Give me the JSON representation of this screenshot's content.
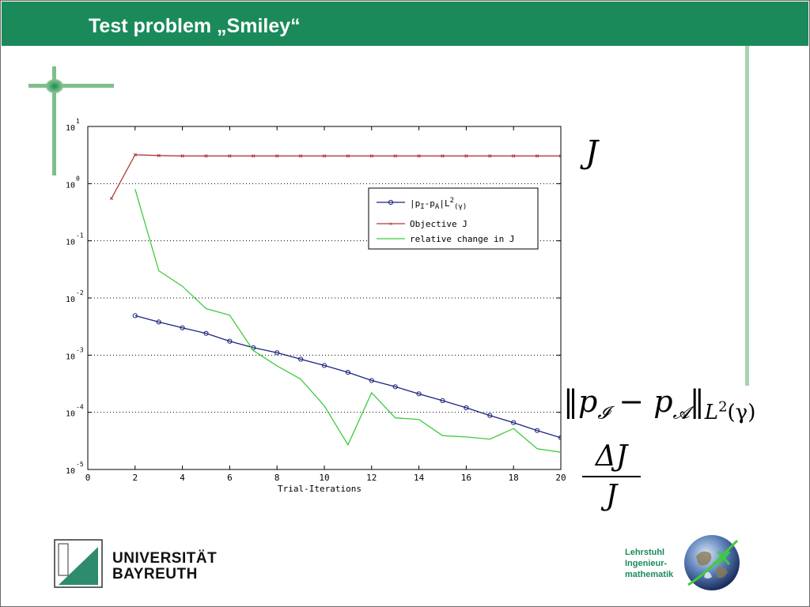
{
  "slide": {
    "title": "Test problem „Smiley“",
    "colors": {
      "brand": "#1b8a5a",
      "accent_light": "#7fbf8a"
    }
  },
  "annotations": {
    "objective": {
      "base": "J"
    },
    "norm": {
      "text": "‖p",
      "sub1": "𝓘",
      "minus": " − p",
      "sub2": "𝓐",
      "close": "‖",
      "space": "L",
      "sup": "2",
      "arg": "(γ)"
    },
    "relative_change": {
      "numerator": "ΔJ",
      "denominator": "J"
    }
  },
  "footer": {
    "university_line1": "UNIVERSITÄT",
    "university_line2": "BAYREUTH",
    "chair_line1": "Lehrstuhl",
    "chair_line2": "Ingenieur-",
    "chair_line3": "mathematik",
    "logo_icon": "university-bayreuth-logo-icon",
    "globe_icon": "globe-icon"
  },
  "chart_data": {
    "type": "line",
    "title": "",
    "xlabel": "Trial-Iterations",
    "ylabel": "",
    "xlim": [
      0,
      20
    ],
    "ylim": [
      1e-05,
      10
    ],
    "yscale": "log",
    "grid": "y-dotted",
    "xticks": [
      "0",
      "2",
      "4",
      "6",
      "8",
      "10",
      "12",
      "14",
      "16",
      "18",
      "20"
    ],
    "yticks": [
      {
        "base": "10",
        "exp": "1"
      },
      {
        "base": "10",
        "exp": "0"
      },
      {
        "base": "10",
        "exp": "-1"
      },
      {
        "base": "10",
        "exp": "-2"
      },
      {
        "base": "10",
        "exp": "-3"
      },
      {
        "base": "10",
        "exp": "-4"
      },
      {
        "base": "10",
        "exp": "-5"
      }
    ],
    "legend_position": "top-right",
    "series": [
      {
        "name": "|pI-pA|L2(γ)",
        "legend": {
          "a": "|p",
          "b": "I",
          "c": "-p",
          "d": "A",
          "e": "|",
          "f": "L",
          "g": "2",
          "h": "(γ)"
        },
        "color": "#1a237e",
        "marker": "circle",
        "x": [
          2,
          3,
          4,
          5,
          6,
          7,
          8,
          9,
          10,
          11,
          12,
          13,
          14,
          15,
          16,
          17,
          18,
          19,
          20
        ],
        "y": [
          0.0049,
          0.0038,
          0.003,
          0.0024,
          0.00175,
          0.00135,
          0.0011,
          0.00085,
          0.00066,
          0.0005,
          0.00036,
          0.00028,
          0.00021,
          0.00016,
          0.00012,
          8.8e-05,
          6.6e-05,
          4.8e-05,
          3.6e-05
        ]
      },
      {
        "name": "Objective J",
        "color": "#b23a3a",
        "marker": "x",
        "x": [
          1,
          2,
          3,
          4,
          5,
          6,
          7,
          8,
          9,
          10,
          11,
          12,
          13,
          14,
          15,
          16,
          17,
          18,
          19,
          20
        ],
        "y": [
          0.55,
          3.2,
          3.1,
          3.05,
          3.05,
          3.05,
          3.05,
          3.05,
          3.05,
          3.05,
          3.05,
          3.05,
          3.05,
          3.05,
          3.05,
          3.05,
          3.05,
          3.05,
          3.05,
          3.05
        ]
      },
      {
        "name": "relative change in J",
        "color": "#3ecb3e",
        "marker": "none",
        "x": [
          2,
          3,
          4,
          5,
          6,
          7,
          8,
          9,
          10,
          11,
          12,
          13,
          14,
          15,
          16,
          17,
          18,
          19,
          20
        ],
        "y": [
          0.8,
          0.03,
          0.016,
          0.0065,
          0.005,
          0.0012,
          0.00065,
          0.00038,
          0.00013,
          2.7e-05,
          0.00022,
          8e-05,
          7.5e-05,
          3.9e-05,
          3.7e-05,
          3.4e-05,
          5.2e-05,
          2.3e-05,
          2e-05
        ]
      }
    ]
  }
}
